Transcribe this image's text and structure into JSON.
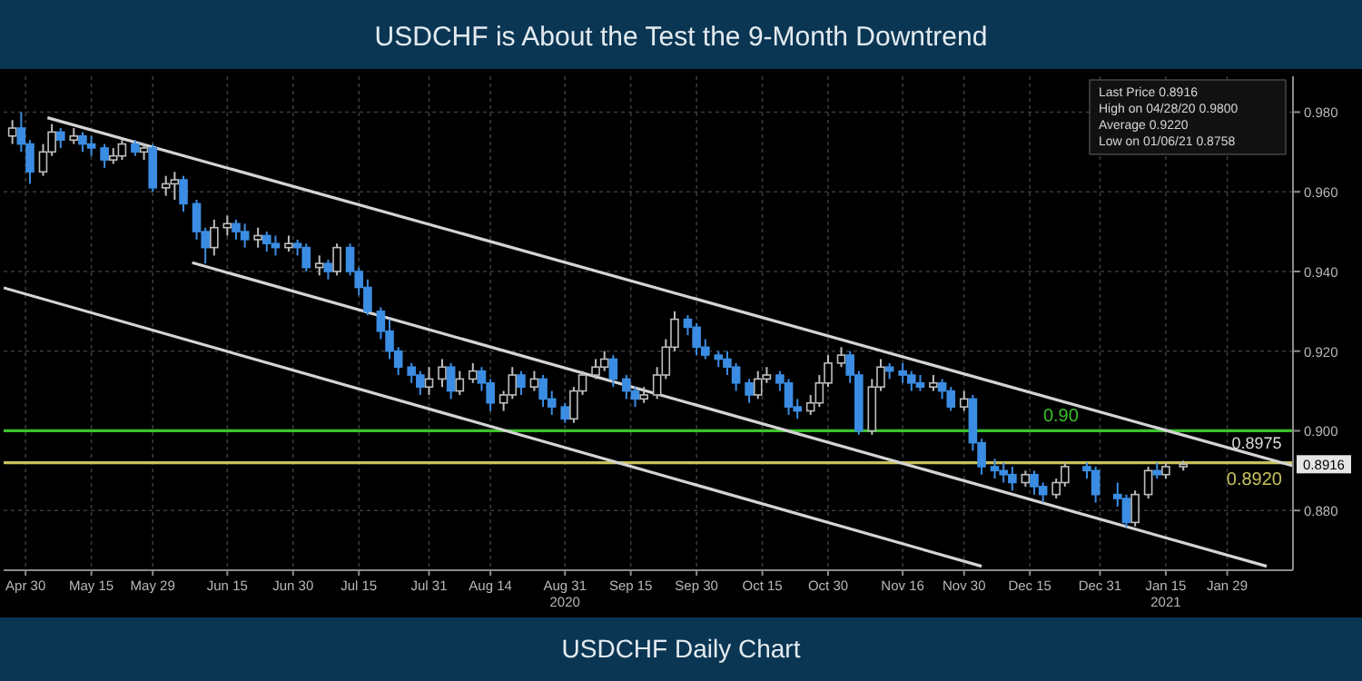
{
  "chart_data": {
    "type": "candlestick",
    "title": "USDCHF is About the Test the 9-Month Downtrend",
    "subtitle": "USDCHF Daily Chart",
    "xlim": [
      "2020-04-25",
      "2021-02-13"
    ],
    "ylim": [
      0.865,
      0.989
    ],
    "xticks": [
      {
        "value": "2020-04-30",
        "label": "Apr 30"
      },
      {
        "value": "2020-05-15",
        "label": "May 15"
      },
      {
        "value": "2020-05-29",
        "label": "May 29"
      },
      {
        "value": "2020-06-15",
        "label": "Jun 15"
      },
      {
        "value": "2020-06-30",
        "label": "Jun 30"
      },
      {
        "value": "2020-07-15",
        "label": "Jul 15"
      },
      {
        "value": "2020-07-31",
        "label": "Jul 31"
      },
      {
        "value": "2020-08-14",
        "label": "Aug 14"
      },
      {
        "value": "2020-08-31",
        "label": "Aug 31\n2020"
      },
      {
        "value": "2020-09-15",
        "label": "Sep 15"
      },
      {
        "value": "2020-09-30",
        "label": "Sep 30"
      },
      {
        "value": "2020-10-15",
        "label": "Oct 15"
      },
      {
        "value": "2020-10-30",
        "label": "Oct 30"
      },
      {
        "value": "2020-11-16",
        "label": "Nov 16"
      },
      {
        "value": "2020-11-30",
        "label": "Nov 30"
      },
      {
        "value": "2020-12-15",
        "label": "Dec 15"
      },
      {
        "value": "2020-12-31",
        "label": "Dec 31"
      },
      {
        "value": "2021-01-15",
        "label": "Jan 15\n2021"
      },
      {
        "value": "2021-01-29",
        "label": "Jan 29"
      }
    ],
    "yticks": [
      {
        "value": 0.88,
        "label": "0.880"
      },
      {
        "value": 0.9,
        "label": "0.900"
      },
      {
        "value": 0.92,
        "label": "0.920"
      },
      {
        "value": 0.94,
        "label": "0.940"
      },
      {
        "value": 0.96,
        "label": "0.960"
      },
      {
        "value": 0.98,
        "label": "0.980"
      }
    ],
    "grid": true,
    "x": [
      "2020-04-27",
      "2020-04-29",
      "2020-05-01",
      "2020-05-04",
      "2020-05-06",
      "2020-05-08",
      "2020-05-11",
      "2020-05-13",
      "2020-05-15",
      "2020-05-18",
      "2020-05-20",
      "2020-05-22",
      "2020-05-25",
      "2020-05-27",
      "2020-05-29",
      "2020-06-01",
      "2020-06-03",
      "2020-06-05",
      "2020-06-08",
      "2020-06-10",
      "2020-06-12",
      "2020-06-15",
      "2020-06-17",
      "2020-06-19",
      "2020-06-22",
      "2020-06-24",
      "2020-06-26",
      "2020-06-29",
      "2020-07-01",
      "2020-07-03",
      "2020-07-06",
      "2020-07-08",
      "2020-07-10",
      "2020-07-13",
      "2020-07-15",
      "2020-07-17",
      "2020-07-20",
      "2020-07-22",
      "2020-07-24",
      "2020-07-27",
      "2020-07-29",
      "2020-07-31",
      "2020-08-03",
      "2020-08-05",
      "2020-08-07",
      "2020-08-10",
      "2020-08-12",
      "2020-08-14",
      "2020-08-17",
      "2020-08-19",
      "2020-08-21",
      "2020-08-24",
      "2020-08-26",
      "2020-08-28",
      "2020-08-31",
      "2020-09-02",
      "2020-09-04",
      "2020-09-07",
      "2020-09-09",
      "2020-09-11",
      "2020-09-14",
      "2020-09-16",
      "2020-09-18",
      "2020-09-21",
      "2020-09-23",
      "2020-09-25",
      "2020-09-28",
      "2020-09-30",
      "2020-10-02",
      "2020-10-05",
      "2020-10-07",
      "2020-10-09",
      "2020-10-12",
      "2020-10-14",
      "2020-10-16",
      "2020-10-19",
      "2020-10-21",
      "2020-10-23",
      "2020-10-26",
      "2020-10-28",
      "2020-10-30",
      "2020-11-02",
      "2020-11-04",
      "2020-11-06",
      "2020-11-09",
      "2020-11-11",
      "2020-11-13",
      "2020-11-16",
      "2020-11-18",
      "2020-11-20",
      "2020-11-23",
      "2020-11-25",
      "2020-11-27",
      "2020-11-30",
      "2020-12-02",
      "2020-12-04",
      "2020-12-07",
      "2020-12-09",
      "2020-12-11",
      "2020-12-14",
      "2020-12-16",
      "2020-12-18",
      "2020-12-21",
      "2020-12-23",
      "2020-12-28",
      "2020-12-30",
      "2021-01-04",
      "2021-01-06",
      "2021-01-08",
      "2021-01-11",
      "2021-01-13",
      "2021-01-15",
      "2021-01-19"
    ],
    "ohlc": [
      [
        0.974,
        0.978,
        0.972,
        0.976
      ],
      [
        0.976,
        0.98,
        0.97,
        0.972
      ],
      [
        0.972,
        0.973,
        0.962,
        0.965
      ],
      [
        0.965,
        0.972,
        0.964,
        0.97
      ],
      [
        0.97,
        0.977,
        0.969,
        0.975
      ],
      [
        0.975,
        0.976,
        0.971,
        0.973
      ],
      [
        0.973,
        0.976,
        0.972,
        0.974
      ],
      [
        0.974,
        0.975,
        0.97,
        0.972
      ],
      [
        0.972,
        0.974,
        0.969,
        0.971
      ],
      [
        0.971,
        0.972,
        0.966,
        0.968
      ],
      [
        0.968,
        0.971,
        0.967,
        0.969
      ],
      [
        0.969,
        0.973,
        0.968,
        0.972
      ],
      [
        0.972,
        0.973,
        0.969,
        0.97
      ],
      [
        0.97,
        0.972,
        0.968,
        0.971
      ],
      [
        0.971,
        0.972,
        0.96,
        0.961
      ],
      [
        0.961,
        0.964,
        0.959,
        0.962
      ],
      [
        0.962,
        0.965,
        0.958,
        0.963
      ],
      [
        0.963,
        0.964,
        0.955,
        0.957
      ],
      [
        0.957,
        0.958,
        0.948,
        0.95
      ],
      [
        0.95,
        0.951,
        0.942,
        0.946
      ],
      [
        0.946,
        0.953,
        0.944,
        0.951
      ],
      [
        0.951,
        0.954,
        0.949,
        0.952
      ],
      [
        0.952,
        0.953,
        0.948,
        0.95
      ],
      [
        0.95,
        0.952,
        0.946,
        0.948
      ],
      [
        0.948,
        0.951,
        0.946,
        0.949
      ],
      [
        0.949,
        0.95,
        0.945,
        0.947
      ],
      [
        0.947,
        0.949,
        0.944,
        0.946
      ],
      [
        0.946,
        0.949,
        0.945,
        0.947
      ],
      [
        0.947,
        0.948,
        0.944,
        0.946
      ],
      [
        0.946,
        0.947,
        0.94,
        0.941
      ],
      [
        0.941,
        0.944,
        0.939,
        0.942
      ],
      [
        0.942,
        0.943,
        0.938,
        0.94
      ],
      [
        0.94,
        0.947,
        0.939,
        0.946
      ],
      [
        0.946,
        0.947,
        0.939,
        0.94
      ],
      [
        0.94,
        0.941,
        0.934,
        0.936
      ],
      [
        0.936,
        0.938,
        0.929,
        0.93
      ],
      [
        0.93,
        0.931,
        0.923,
        0.925
      ],
      [
        0.925,
        0.928,
        0.918,
        0.92
      ],
      [
        0.92,
        0.921,
        0.914,
        0.916
      ],
      [
        0.916,
        0.917,
        0.912,
        0.914
      ],
      [
        0.914,
        0.915,
        0.909,
        0.911
      ],
      [
        0.911,
        0.916,
        0.909,
        0.913
      ],
      [
        0.913,
        0.918,
        0.911,
        0.916
      ],
      [
        0.916,
        0.917,
        0.908,
        0.91
      ],
      [
        0.91,
        0.915,
        0.909,
        0.913
      ],
      [
        0.913,
        0.917,
        0.912,
        0.915
      ],
      [
        0.915,
        0.916,
        0.91,
        0.912
      ],
      [
        0.912,
        0.913,
        0.905,
        0.907
      ],
      [
        0.907,
        0.91,
        0.905,
        0.909
      ],
      [
        0.909,
        0.916,
        0.908,
        0.914
      ],
      [
        0.914,
        0.915,
        0.909,
        0.911
      ],
      [
        0.911,
        0.915,
        0.91,
        0.913
      ],
      [
        0.913,
        0.914,
        0.906,
        0.908
      ],
      [
        0.908,
        0.91,
        0.904,
        0.906
      ],
      [
        0.906,
        0.907,
        0.902,
        0.903
      ],
      [
        0.903,
        0.911,
        0.902,
        0.91
      ],
      [
        0.91,
        0.915,
        0.909,
        0.914
      ],
      [
        0.914,
        0.918,
        0.913,
        0.916
      ],
      [
        0.916,
        0.92,
        0.915,
        0.918
      ],
      [
        0.918,
        0.919,
        0.911,
        0.913
      ],
      [
        0.913,
        0.914,
        0.908,
        0.91
      ],
      [
        0.91,
        0.911,
        0.906,
        0.908
      ],
      [
        0.908,
        0.911,
        0.907,
        0.909
      ],
      [
        0.909,
        0.916,
        0.908,
        0.914
      ],
      [
        0.914,
        0.923,
        0.913,
        0.921
      ],
      [
        0.921,
        0.93,
        0.92,
        0.928
      ],
      [
        0.928,
        0.929,
        0.924,
        0.926
      ],
      [
        0.926,
        0.927,
        0.919,
        0.921
      ],
      [
        0.921,
        0.923,
        0.918,
        0.919
      ],
      [
        0.919,
        0.92,
        0.916,
        0.918
      ],
      [
        0.918,
        0.92,
        0.914,
        0.916
      ],
      [
        0.916,
        0.917,
        0.91,
        0.912
      ],
      [
        0.912,
        0.913,
        0.907,
        0.909
      ],
      [
        0.909,
        0.915,
        0.908,
        0.913
      ],
      [
        0.913,
        0.916,
        0.912,
        0.914
      ],
      [
        0.914,
        0.915,
        0.91,
        0.912
      ],
      [
        0.912,
        0.913,
        0.904,
        0.906
      ],
      [
        0.906,
        0.908,
        0.903,
        0.905
      ],
      [
        0.905,
        0.909,
        0.904,
        0.907
      ],
      [
        0.907,
        0.914,
        0.906,
        0.912
      ],
      [
        0.912,
        0.919,
        0.911,
        0.917
      ],
      [
        0.917,
        0.921,
        0.916,
        0.919
      ],
      [
        0.919,
        0.92,
        0.912,
        0.914
      ],
      [
        0.914,
        0.915,
        0.899,
        0.9
      ],
      [
        0.9,
        0.913,
        0.899,
        0.911
      ],
      [
        0.911,
        0.918,
        0.91,
        0.916
      ],
      [
        0.916,
        0.917,
        0.913,
        0.915
      ],
      [
        0.915,
        0.917,
        0.912,
        0.914
      ],
      [
        0.914,
        0.915,
        0.91,
        0.912
      ],
      [
        0.912,
        0.914,
        0.91,
        0.911
      ],
      [
        0.911,
        0.914,
        0.91,
        0.912
      ],
      [
        0.912,
        0.913,
        0.908,
        0.91
      ],
      [
        0.91,
        0.911,
        0.905,
        0.906
      ],
      [
        0.906,
        0.91,
        0.905,
        0.908
      ],
      [
        0.908,
        0.909,
        0.895,
        0.897
      ],
      [
        0.897,
        0.898,
        0.889,
        0.891
      ],
      [
        0.891,
        0.893,
        0.888,
        0.89
      ],
      [
        0.89,
        0.892,
        0.887,
        0.889
      ],
      [
        0.889,
        0.891,
        0.885,
        0.887
      ],
      [
        0.887,
        0.89,
        0.886,
        0.889
      ],
      [
        0.889,
        0.89,
        0.884,
        0.886
      ],
      [
        0.886,
        0.887,
        0.882,
        0.884
      ],
      [
        0.884,
        0.888,
        0.883,
        0.887
      ],
      [
        0.887,
        0.892,
        0.886,
        0.891
      ],
      [
        0.891,
        0.892,
        0.888,
        0.89
      ],
      [
        0.89,
        0.891,
        0.882,
        0.884
      ],
      [
        0.884,
        0.887,
        0.881,
        0.883
      ],
      [
        0.883,
        0.884,
        0.8758,
        0.877
      ],
      [
        0.877,
        0.885,
        0.876,
        0.884
      ],
      [
        0.884,
        0.891,
        0.883,
        0.89
      ],
      [
        0.89,
        0.892,
        0.888,
        0.889
      ],
      [
        0.889,
        0.892,
        0.888,
        0.891
      ],
      [
        0.891,
        0.8925,
        0.89,
        0.8916
      ]
    ],
    "series": [
      {
        "type": "line",
        "name": "0.8975",
        "color": "#d4d4d4",
        "x": [
          "2020-05-05",
          "2021-02-13"
        ],
        "values": [
          0.9786,
          0.8912
        ]
      },
      {
        "type": "line",
        "color": "#d4d4d4",
        "x": [
          "2020-06-07",
          "2021-02-07"
        ],
        "values": [
          0.9422,
          0.866
        ]
      },
      {
        "type": "line",
        "color": "#d4d4d4",
        "x": [
          "2020-04-25",
          "2020-12-04"
        ],
        "values": [
          0.9359,
          0.866
        ]
      }
    ],
    "ref_lines": [
      {
        "axis": "y",
        "value": 0.9,
        "label": "0.90",
        "color": "#3cc12e"
      },
      {
        "axis": "y",
        "value": 0.892,
        "label": "0.8920",
        "color": "#c9c35c"
      }
    ],
    "annotations": [
      "Last Price 0.8916",
      "High on 04/28/20 0.9800",
      "Average 0.9220",
      "Low on 01/06/21 0.8758",
      {
        "text": "0.8916",
        "y": 0.8916
      }
    ]
  }
}
